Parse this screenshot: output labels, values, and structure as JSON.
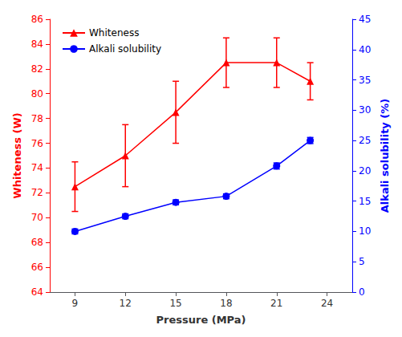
{
  "chart_data": {
    "type": "line",
    "x": [
      9,
      12,
      15,
      18,
      21,
      23
    ],
    "xlabel": "Pressure (MPa)",
    "ylabel": "Whiteness (W)",
    "y2label": "Alkali solubility (%)",
    "xlim": [
      7.5,
      25.5
    ],
    "xticks": [
      9,
      12,
      15,
      18,
      21,
      24
    ],
    "ylim": [
      64,
      86
    ],
    "yticks": [
      64,
      66,
      68,
      70,
      72,
      74,
      76,
      78,
      80,
      82,
      84,
      86
    ],
    "y2lim": [
      0,
      45
    ],
    "y2ticks": [
      0,
      5,
      10,
      15,
      20,
      25,
      30,
      35,
      40,
      45
    ],
    "grid": false,
    "legend": "upper left",
    "series": [
      {
        "name": "Whiteness",
        "color": "red",
        "marker": "triangle",
        "line_style": "solid",
        "values": [
          72.5,
          75.0,
          78.5,
          82.5,
          82.5,
          81.0
        ],
        "errors": [
          2.0,
          2.5,
          2.5,
          2.0,
          2.0,
          1.5
        ]
      },
      {
        "name": "Alkali solubility",
        "color": "blue",
        "marker": "circle",
        "line_style": "solid",
        "axis": "y2",
        "values": [
          10.0,
          12.5,
          14.8,
          15.8,
          20.8,
          25.0
        ],
        "errors": [
          0.4,
          0.4,
          0.4,
          0.4,
          0.5,
          0.5
        ]
      }
    ]
  }
}
